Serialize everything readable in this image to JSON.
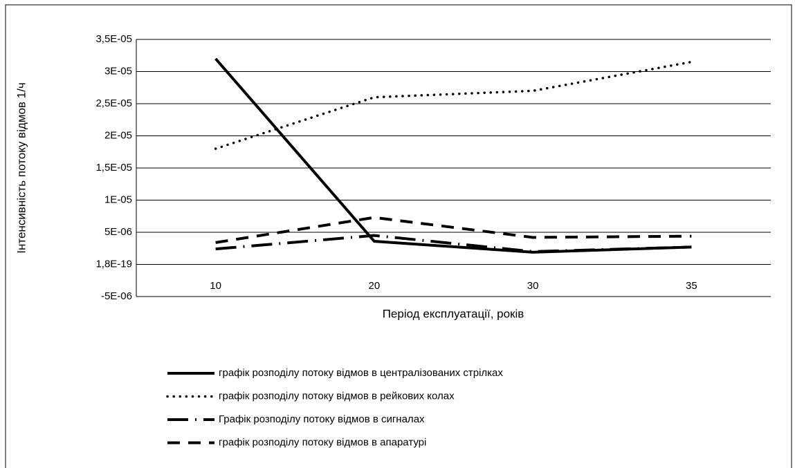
{
  "chart_data": {
    "type": "line",
    "y_label": "Інтенсивність потоку відмов 1/ч",
    "x_label": "Період експлуатації, років",
    "categories": [
      "10",
      "20",
      "30",
      "35"
    ],
    "ylim": [
      -5e-06,
      3.5e-05
    ],
    "yticks": [
      {
        "value": 3.5e-05,
        "label": "3,5E-05"
      },
      {
        "value": 3e-05,
        "label": "3E-05"
      },
      {
        "value": 2.5e-05,
        "label": "2,5E-05"
      },
      {
        "value": 2e-05,
        "label": "2E-05"
      },
      {
        "value": 1.5e-05,
        "label": "1,5E-05"
      },
      {
        "value": 1e-05,
        "label": "1E-05"
      },
      {
        "value": 5e-06,
        "label": "5E-06"
      },
      {
        "value": 1.8e-19,
        "label": "1,8E-19"
      },
      {
        "value": -5e-06,
        "label": "-5E-06"
      }
    ],
    "grid": true,
    "legend": "bottom",
    "series": [
      {
        "name": "графік розподілу потоку відмов в централізованих стрілках",
        "color": "#000000",
        "style": "solid",
        "values": [
          3.2e-05,
          3.6e-06,
          1.9e-06,
          2.7e-06
        ]
      },
      {
        "name": "графік розподілу потоку відмов в рейкових колах",
        "color": "#000000",
        "style": "dot",
        "values": [
          1.8e-05,
          2.6e-05,
          2.7e-05,
          3.15e-05
        ]
      },
      {
        "name": "Графік розподілу потоку відмов в сигналах",
        "color": "#000000",
        "style": "dashdot",
        "values": [
          2.4e-06,
          4.5e-06,
          2e-06,
          2.7e-06
        ]
      },
      {
        "name": "графік розподілу потоку відмов в апаратурі",
        "color": "#000000",
        "style": "dash",
        "values": [
          3.4e-06,
          7.3e-06,
          4.2e-06,
          4.4e-06
        ]
      }
    ]
  }
}
